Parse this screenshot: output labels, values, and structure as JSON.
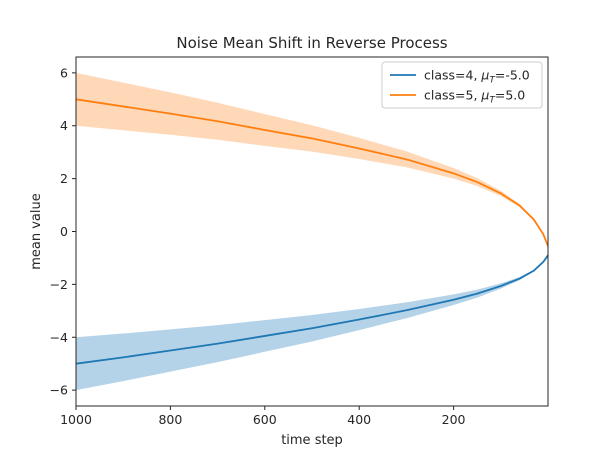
{
  "chart_data": {
    "type": "line",
    "title": "Noise Mean Shift in Reverse Process",
    "xlabel": "time step",
    "ylabel": "mean value",
    "xlim": [
      1000,
      0
    ],
    "ylim": [
      -6.6,
      6.6
    ],
    "x_reversed": true,
    "xticks": [
      1000,
      800,
      600,
      400,
      200
    ],
    "xtick_labels": [
      "1000",
      "800",
      "600",
      "400",
      "200"
    ],
    "yticks": [
      6,
      4,
      2,
      0,
      -2,
      -4,
      -6
    ],
    "ytick_labels": [
      "6",
      "4",
      "2",
      "0",
      "−2",
      "−4",
      "−6"
    ],
    "legend_position": "top-right",
    "band_halfwidth_at_T": 1.0,
    "series": [
      {
        "name": "class=4, ",
        "mu_label": "μ",
        "mu_sub": "T",
        "mu_value": "=-5.0",
        "color": "#1f77b4",
        "band_color": "#b4d3e9",
        "x": [
          1000,
          900,
          800,
          700,
          600,
          500,
          400,
          300,
          200,
          150,
          100,
          60,
          30,
          10,
          0
        ],
        "y": [
          -5.0,
          -4.76,
          -4.5,
          -4.24,
          -3.95,
          -3.66,
          -3.33,
          -2.98,
          -2.58,
          -2.35,
          -2.06,
          -1.78,
          -1.48,
          -1.15,
          -0.9
        ]
      },
      {
        "name": "class=5, ",
        "mu_label": "μ",
        "mu_sub": "T",
        "mu_value": "=5.0",
        "color": "#ff7f0e",
        "band_color": "#ffd8b8",
        "x": [
          1000,
          900,
          800,
          700,
          600,
          500,
          400,
          300,
          200,
          150,
          100,
          60,
          30,
          10,
          0
        ],
        "y": [
          5.0,
          4.73,
          4.46,
          4.17,
          3.84,
          3.52,
          3.14,
          2.73,
          2.2,
          1.87,
          1.44,
          0.98,
          0.45,
          -0.1,
          -0.55
        ]
      }
    ]
  }
}
